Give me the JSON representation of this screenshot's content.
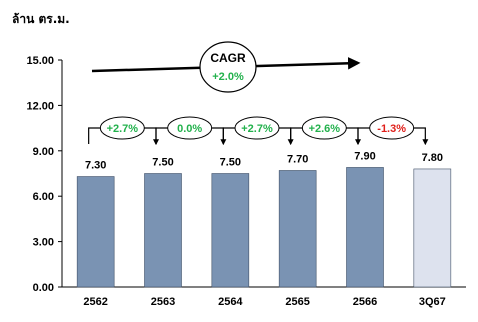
{
  "chart_data": {
    "type": "bar",
    "unit_label": "ล้าน ตร.ม.",
    "categories": [
      "2562",
      "2563",
      "2564",
      "2565",
      "2566",
      "3Q67"
    ],
    "values": [
      7.3,
      7.5,
      7.5,
      7.7,
      7.9,
      7.8
    ],
    "value_labels": [
      "7.30",
      "7.50",
      "7.50",
      "7.70",
      "7.90",
      "7.80"
    ],
    "highlight_last": true,
    "ylim": [
      0,
      15
    ],
    "yticks": [
      "0.00",
      "3.00",
      "6.00",
      "9.00",
      "12.00",
      "15.00"
    ],
    "ytick_values": [
      0,
      3,
      6,
      9,
      12,
      15
    ],
    "growth": [
      {
        "label": "+2.7%",
        "from": 0,
        "to": 1,
        "color": "#22b14c"
      },
      {
        "label": "0.0%",
        "from": 1,
        "to": 2,
        "color": "#22b14c"
      },
      {
        "label": "+2.7%",
        "from": 2,
        "to": 3,
        "color": "#22b14c"
      },
      {
        "label": "+2.6%",
        "from": 3,
        "to": 4,
        "color": "#22b14c"
      },
      {
        "label": "-1.3%",
        "from": 4,
        "to": 5,
        "color": "#e0201b"
      }
    ],
    "cagr": {
      "title": "CAGR",
      "value": "+2.0%",
      "value_color": "#22b14c"
    },
    "colors": {
      "bar": "#7a93b3",
      "bar_last": "#dde2ee",
      "bar_stroke": "#3f4f66"
    }
  }
}
